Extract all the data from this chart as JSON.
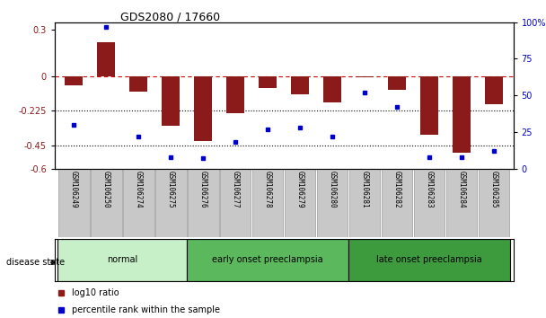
{
  "title": "GDS2080 / 17660",
  "samples": [
    "GSM106249",
    "GSM106250",
    "GSM106274",
    "GSM106275",
    "GSM106276",
    "GSM106277",
    "GSM106278",
    "GSM106279",
    "GSM106280",
    "GSM106281",
    "GSM106282",
    "GSM106283",
    "GSM106284",
    "GSM106285"
  ],
  "log10_ratio": [
    -0.06,
    0.22,
    -0.1,
    -0.32,
    -0.42,
    -0.24,
    -0.08,
    -0.12,
    -0.17,
    -0.01,
    -0.09,
    -0.38,
    -0.5,
    -0.18
  ],
  "percentile_rank": [
    30,
    97,
    22,
    8,
    7,
    18,
    27,
    28,
    22,
    52,
    42,
    8,
    8,
    12
  ],
  "ylim_left": [
    -0.6,
    0.35
  ],
  "ylim_right": [
    0,
    100
  ],
  "yticks_left": [
    0.3,
    0,
    -0.225,
    -0.45,
    -0.6
  ],
  "yticks_right": [
    100,
    75,
    50,
    25,
    0
  ],
  "hline_dashed": 0,
  "hline_dot1": -0.225,
  "hline_dot2": -0.45,
  "bar_color": "#8B1A1A",
  "dot_color": "#0000CD",
  "groups": [
    {
      "label": "normal",
      "start": 0,
      "end": 3
    },
    {
      "label": "early onset preeclampsia",
      "start": 4,
      "end": 8
    },
    {
      "label": "late onset preeclampsia",
      "start": 9,
      "end": 13
    }
  ],
  "group_colors": [
    "#c8f0c8",
    "#5cb85c",
    "#3d9a3d"
  ],
  "legend_items": [
    {
      "label": "log10 ratio",
      "color": "#8B1A1A"
    },
    {
      "label": "percentile rank within the sample",
      "color": "#0000CD"
    }
  ],
  "disease_state_label": "disease state",
  "background_color": "#ffffff",
  "right_axis_color": "#0000CD",
  "left_axis_color": "#8B1A1A"
}
